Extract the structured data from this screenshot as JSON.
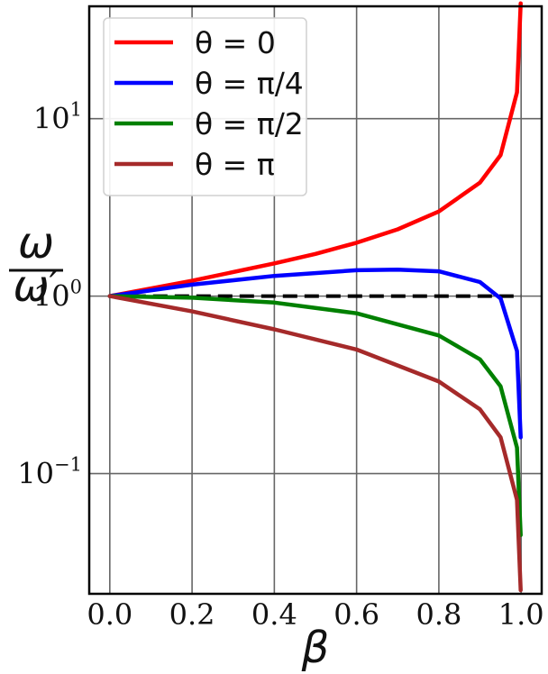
{
  "chart_data": {
    "type": "line",
    "title": "",
    "xlabel": "β",
    "ylabel_num": "ω",
    "ylabel_den": "ω′",
    "yscale": "log",
    "xlim": [
      -0.05,
      1.05
    ],
    "ylim": [
      0.021,
      43
    ],
    "grid": true,
    "legend_position": "top-left",
    "x_ticks": [
      0.0,
      0.2,
      0.4,
      0.6,
      0.8,
      1.0
    ],
    "x_tick_labels": [
      "0.0",
      "0.2",
      "0.4",
      "0.6",
      "0.8",
      "1.0"
    ],
    "y_ticks": [
      {
        "value": 10,
        "base": "10",
        "exp": "1"
      },
      {
        "value": 1,
        "base": "10",
        "exp": "0"
      },
      {
        "value": 0.1,
        "base": "10",
        "exp": "−1"
      }
    ],
    "reference_line": {
      "y": 1,
      "x_start": 0.0,
      "x_end": 1.0,
      "style": "dashed",
      "color": "#000000"
    },
    "series": [
      {
        "name": "θ = 0",
        "theta_deg": 0,
        "color": "#ff0000",
        "x": [
          0,
          0.2,
          0.4,
          0.5,
          0.6,
          0.7,
          0.8,
          0.9,
          0.95,
          0.99,
          0.999
        ],
        "y": [
          1.0,
          1.22,
          1.53,
          1.73,
          2.0,
          2.38,
          3.0,
          4.36,
          6.24,
          14.1,
          44.7
        ]
      },
      {
        "name": "θ = π/4",
        "theta_deg": 45,
        "color": "#0000ff",
        "x": [
          0,
          0.2,
          0.4,
          0.6,
          0.7,
          0.8,
          0.9,
          0.95,
          0.99,
          0.999
        ],
        "y": [
          1.0,
          1.16,
          1.3,
          1.4,
          1.41,
          1.38,
          1.2,
          0.97,
          0.49,
          0.16
        ]
      },
      {
        "name": "θ = π/2",
        "theta_deg": 90,
        "color": "#008000",
        "x": [
          0,
          0.2,
          0.4,
          0.6,
          0.8,
          0.9,
          0.95,
          0.99,
          0.999
        ],
        "y": [
          1.0,
          0.98,
          0.92,
          0.8,
          0.6,
          0.44,
          0.31,
          0.14,
          0.045
        ]
      },
      {
        "name": "θ = π",
        "theta_deg": 180,
        "color": "#a52a2a",
        "x": [
          0,
          0.2,
          0.4,
          0.6,
          0.8,
          0.9,
          0.95,
          0.99,
          0.999
        ],
        "y": [
          1.0,
          0.82,
          0.65,
          0.5,
          0.33,
          0.23,
          0.16,
          0.071,
          0.022
        ]
      }
    ]
  }
}
